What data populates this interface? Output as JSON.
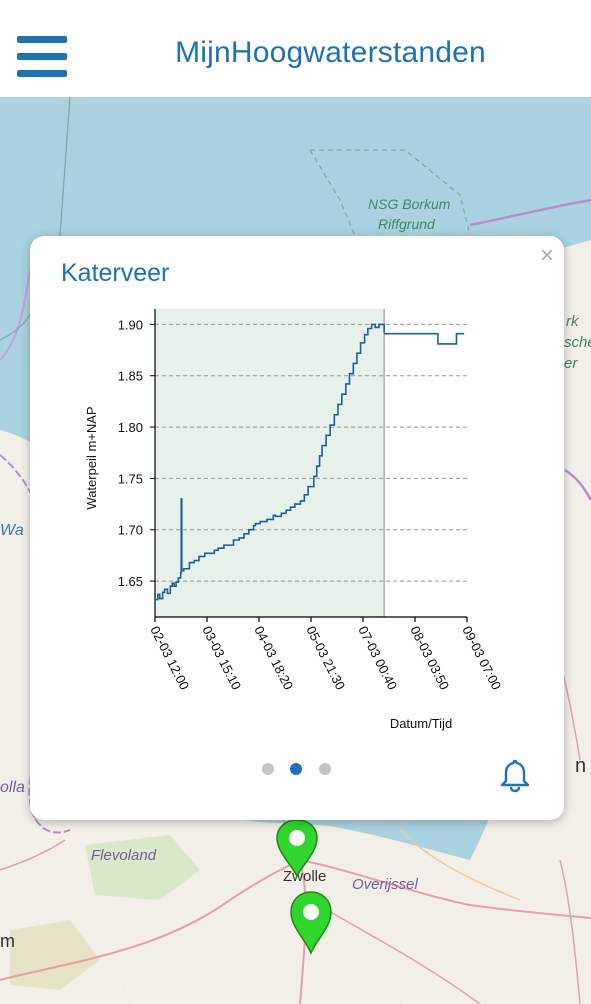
{
  "header": {
    "title": "MijnHoogwaterstanden",
    "menu_icon": "hamburger-menu-icon",
    "accent": "#1b74b7"
  },
  "map": {
    "labels": [
      "NSG Borkum",
      "Riffgrund",
      "Flevoland",
      "Zwolle",
      "Overijssel",
      "Wa",
      "olla",
      "m",
      "rk",
      "sche",
      "er",
      "n"
    ]
  },
  "popup": {
    "title": "Katerveer",
    "close_icon": "close-icon",
    "close_glyph": "×",
    "pagination": {
      "count": 3,
      "active": 1
    },
    "bell_icon": "bell-icon"
  },
  "chart_data": {
    "type": "line",
    "ylabel": "Waterpeil m+NAP",
    "xlabel": "Datum/Tijd",
    "ylim": [
      1.615,
      1.915
    ],
    "yticks": [
      "1.65",
      "1.70",
      "1.75",
      "1.80",
      "1.85",
      "1.90"
    ],
    "ytick_values": [
      1.65,
      1.7,
      1.75,
      1.8,
      1.85,
      1.9
    ],
    "xticks": [
      "02-03 12:00",
      "03-03 15:10",
      "04-03 18:20",
      "05-03 21:30",
      "07-03 00:40",
      "08-03 03:50",
      "09-03 07:00"
    ],
    "xlim_hours": [
      0,
      163
    ],
    "grid": "horizontal dashed",
    "shaded_region_hours": [
      0,
      119.7
    ],
    "series": [
      {
        "role": "measured",
        "color": "#1f5f9e",
        "x_hours": [
          0,
          1.5,
          2.5,
          4,
          5,
          6.5,
          8,
          9,
          10,
          11,
          12.2,
          13.4,
          13.7,
          14,
          15,
          18,
          20.5,
          23,
          26,
          31,
          33,
          36,
          41,
          44,
          46.5,
          49,
          51.5,
          52.5,
          55,
          58.5,
          61.8,
          63,
          66,
          68.5,
          70.8,
          73,
          76,
          78,
          80,
          83,
          84.5,
          86,
          87.3,
          89.4,
          91.5,
          93.7,
          95.6,
          97.6,
          99.7,
          101.6,
          103.6,
          105.5,
          107.4,
          109.5,
          111.2,
          113.2,
          115,
          117,
          119.7
        ],
        "y": [
          1.632,
          1.637,
          1.633,
          1.639,
          1.642,
          1.638,
          1.645,
          1.648,
          1.645,
          1.649,
          1.653,
          1.658,
          1.73,
          1.66,
          1.662,
          1.668,
          1.67,
          1.674,
          1.677,
          1.68,
          1.682,
          1.685,
          1.69,
          1.692,
          1.696,
          1.7,
          1.704,
          1.706,
          1.708,
          1.71,
          1.714,
          1.713,
          1.716,
          1.719,
          1.722,
          1.725,
          1.728,
          1.734,
          1.742,
          1.752,
          1.762,
          1.772,
          1.782,
          1.792,
          1.802,
          1.812,
          1.822,
          1.832,
          1.842,
          1.852,
          1.862,
          1.872,
          1.882,
          1.89,
          1.896,
          1.9,
          1.897,
          1.9,
          1.892
        ]
      },
      {
        "role": "forecast",
        "color": "#1f5f9e",
        "x_hours": [
          119.7,
          132.5,
          147.8,
          157.5,
          161.5
        ],
        "y": [
          1.891,
          1.891,
          1.881,
          1.891,
          1.891
        ]
      }
    ]
  }
}
